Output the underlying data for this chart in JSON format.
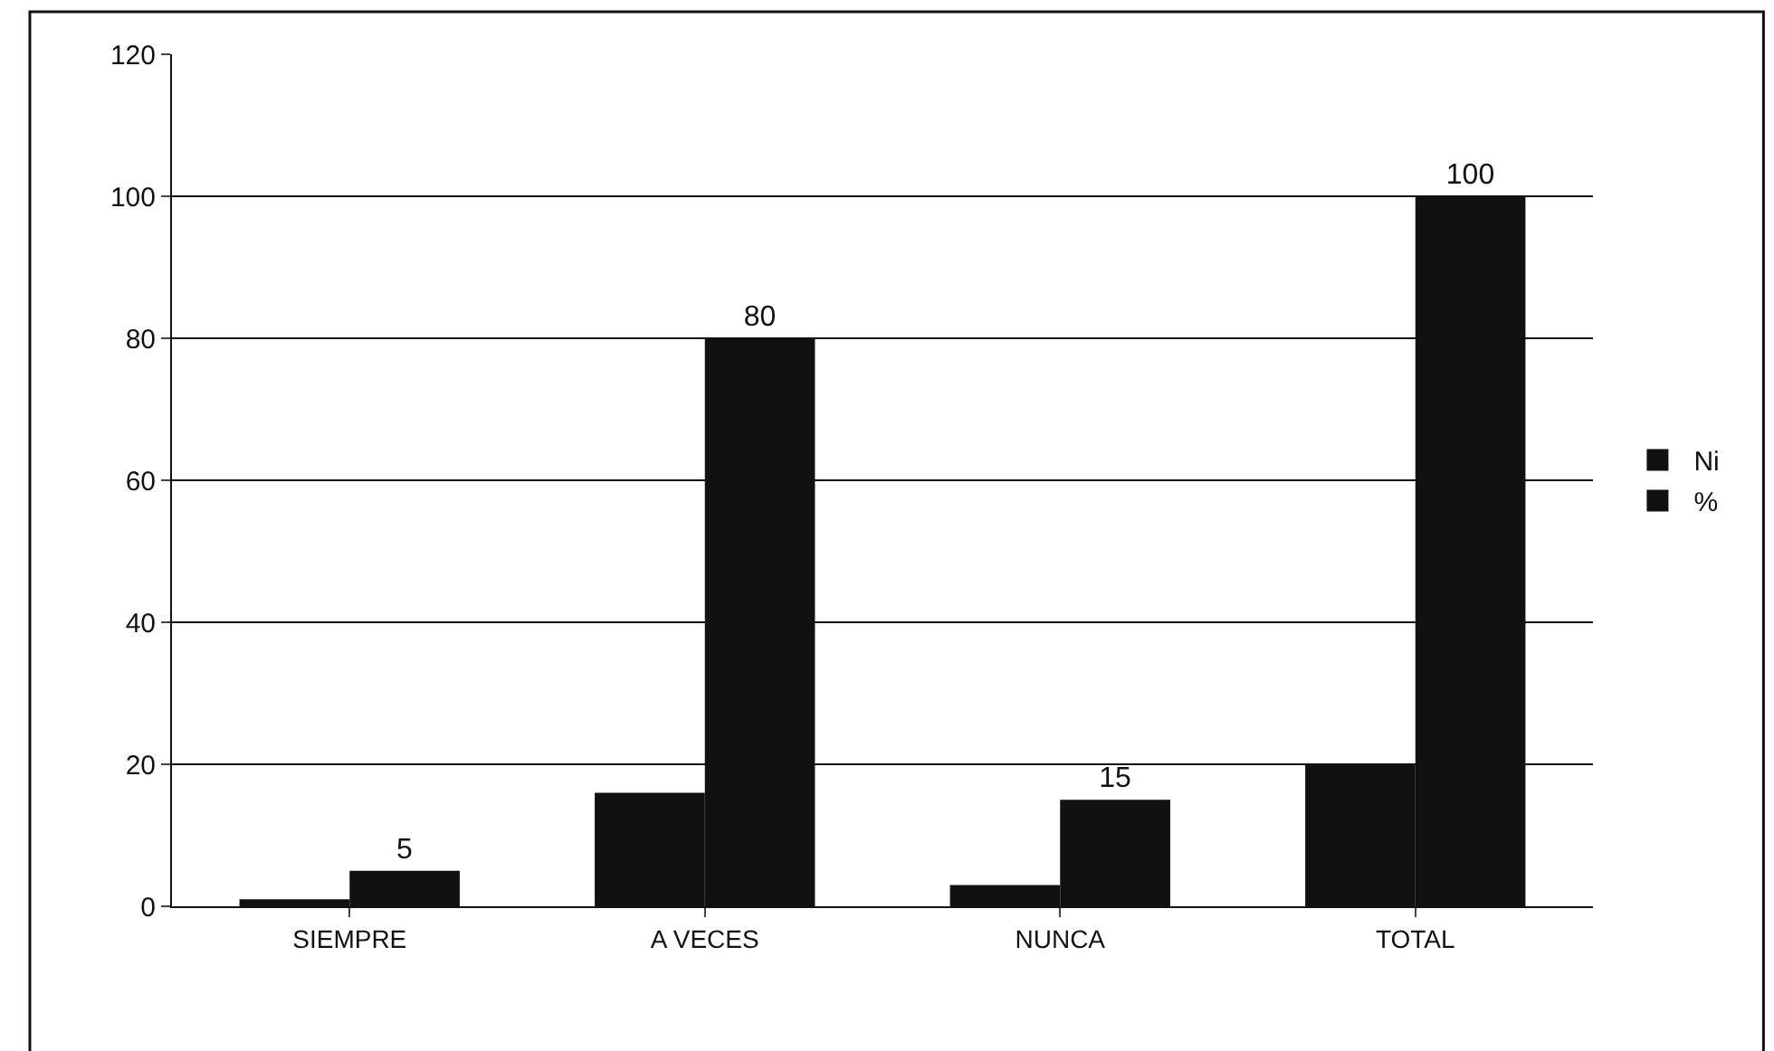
{
  "chart_data": {
    "type": "bar",
    "categories": [
      "SIEMPRE",
      "A VECES",
      "NUNCA",
      "TOTAL"
    ],
    "series": [
      {
        "name": "Ni",
        "color": "#111111",
        "values": [
          1,
          16,
          3,
          20
        ]
      },
      {
        "name": "%",
        "color": "#111111",
        "values": [
          5,
          80,
          15,
          100
        ],
        "value_labels": [
          "5",
          "80",
          "15",
          "100"
        ]
      }
    ],
    "ylim": [
      0,
      120
    ],
    "yticks": [
      0,
      20,
      40,
      60,
      80,
      100,
      120
    ],
    "grid": "y",
    "legend": "right"
  }
}
